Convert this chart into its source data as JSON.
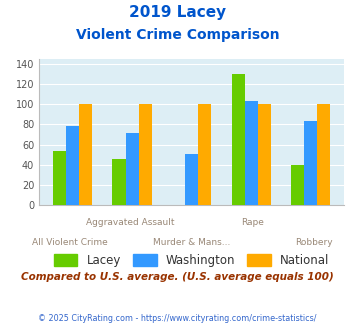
{
  "title_line1": "2019 Lacey",
  "title_line2": "Violent Crime Comparison",
  "cat_line1": [
    "",
    "Aggravated Assault",
    "",
    "Rape",
    ""
  ],
  "cat_line2": [
    "All Violent Crime",
    "",
    "Murder & Mans...",
    "",
    "Robbery"
  ],
  "lacey": [
    54,
    46,
    0,
    130,
    40
  ],
  "washington": [
    78,
    72,
    51,
    103,
    83
  ],
  "national": [
    100,
    100,
    100,
    100,
    100
  ],
  "color_lacey": "#66cc00",
  "color_washington": "#3399ff",
  "color_national": "#ffaa00",
  "ylim": [
    0,
    145
  ],
  "yticks": [
    0,
    20,
    40,
    60,
    80,
    100,
    120,
    140
  ],
  "title_color": "#0055cc",
  "bg_color": "#ddeef5",
  "note_text": "Compared to U.S. average. (U.S. average equals 100)",
  "footer_text": "© 2025 CityRating.com - https://www.cityrating.com/crime-statistics/",
  "note_color": "#993300",
  "footer_color": "#3366cc",
  "label_color": "#998877"
}
